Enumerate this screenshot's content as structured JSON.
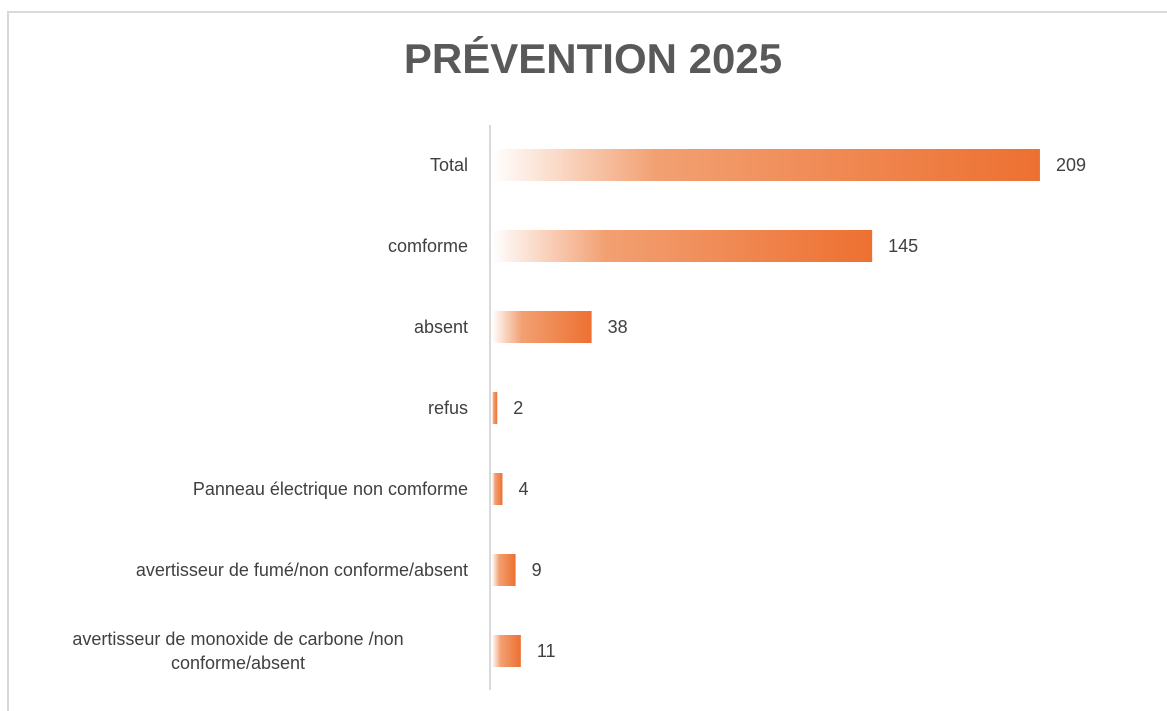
{
  "chart_data": {
    "type": "bar",
    "orientation": "horizontal",
    "title": "PRÉVENTION 2025",
    "categories": [
      "Total",
      "comforme",
      "absent",
      "refus",
      "Panneau électrique non comforme",
      "avertisseur de fumé/non conforme/absent",
      "avertisseur de monoxide de carbone /non conforme/absent"
    ],
    "values": [
      209,
      145,
      38,
      2,
      4,
      9,
      11
    ],
    "color": "#ed7031",
    "xlim": [
      0,
      230
    ]
  }
}
